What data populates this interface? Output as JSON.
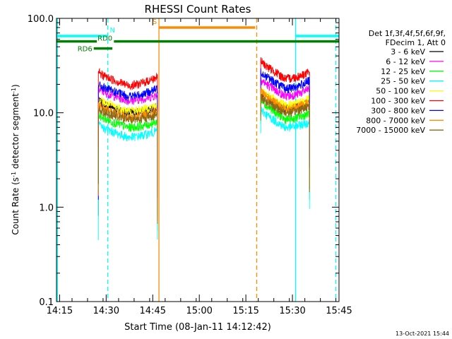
{
  "chart_data": {
    "type": "line",
    "title": "RHESSI Count Rates",
    "xlabel": "Start Time (08-Jan-11 14:12:42)",
    "ylabel_main": "Count Rate (s",
    "ylabel_sup1": "-1",
    "ylabel_mid": " detector segment",
    "ylabel_sup2": "-1",
    "ylabel_end": ")",
    "timestamp": "13-Oct-2021 15:44",
    "y_scale": "log",
    "ylim": [
      0.1,
      100
    ],
    "xlim_minutes": [
      14.0,
      105.0
    ],
    "y_ticks": [
      {
        "value": 0.1,
        "label": "0.1"
      },
      {
        "value": 1,
        "label": "1.0"
      },
      {
        "value": 10,
        "label": "10.0"
      },
      {
        "value": 100,
        "label": "100.0"
      }
    ],
    "x_ticks": [
      {
        "minute": 15,
        "label": "14:15"
      },
      {
        "minute": 30,
        "label": "14:30"
      },
      {
        "minute": 45,
        "label": "14:45"
      },
      {
        "minute": 60,
        "label": "15:00"
      },
      {
        "minute": 75,
        "label": "15:15"
      },
      {
        "minute": 90,
        "label": "15:30"
      },
      {
        "minute": 105,
        "label": "15:45"
      }
    ],
    "legend_header": [
      "Det 1f,3f,4f,5f,6f,9f,",
      "FDecim 1, Att 0"
    ],
    "series": [
      {
        "name": "3 - 6 keV",
        "color": "#000000",
        "seg1": [
          13.5,
          10.0,
          11.5
        ],
        "seg2": [
          17,
          11,
          13
        ]
      },
      {
        "name": "6 - 12 keV",
        "color": "#ff00ff",
        "seg1": [
          18,
          13.5,
          15.5
        ],
        "seg2": [
          23,
          15,
          18
        ]
      },
      {
        "name": "12 - 25 keV",
        "color": "#00ff00",
        "seg1": [
          9.5,
          7.0,
          8.0
        ],
        "seg2": [
          14,
          8.5,
          10
        ]
      },
      {
        "name": "25 - 50 keV",
        "color": "#00ffff",
        "seg1": [
          7.5,
          5.5,
          6.5
        ],
        "seg2": [
          11,
          7,
          8
        ]
      },
      {
        "name": "50 - 100 keV",
        "color": "#ffff00",
        "seg1": [
          14,
          10.5,
          12
        ],
        "seg2": [
          18,
          12,
          14
        ]
      },
      {
        "name": "100 - 300 keV",
        "color": "#ff0000",
        "seg1": [
          27,
          19.5,
          24
        ],
        "seg2": [
          36,
          23,
          27
        ]
      },
      {
        "name": "300 - 800 keV",
        "color": "#0000ff",
        "seg1": [
          20,
          15,
          18
        ],
        "seg2": [
          28,
          18,
          22
        ]
      },
      {
        "name": "800 - 7000 keV",
        "color": "#ff8c00",
        "seg1": [
          12,
          9,
          10.5
        ],
        "seg2": [
          17,
          11,
          13
        ]
      },
      {
        "name": "7000 - 15000 keV",
        "color": "#8b6914",
        "seg1": [
          11,
          8.5,
          9.5
        ],
        "seg2": [
          15,
          10,
          12
        ]
      }
    ],
    "segment_times": {
      "seg1": [
        27.5,
        46.5
      ],
      "seg2": [
        79.8,
        95.5
      ]
    },
    "flags": [
      {
        "label": "N",
        "color": "#00ffff",
        "y": 65,
        "spans": [
          [
            14,
            30.5
          ],
          [
            91,
            105
          ]
        ]
      },
      {
        "label": "S",
        "color": "#ff8c00",
        "y": 80,
        "spans": [
          [
            47,
            78
          ]
        ]
      },
      {
        "label": "RD0",
        "color": "#008000",
        "y": 57,
        "spans": [
          [
            14,
            27
          ],
          [
            32.5,
            105
          ]
        ]
      },
      {
        "label": "RD6",
        "color": "#008000",
        "y": 48,
        "spans": [
          [
            26,
            32
          ]
        ]
      }
    ],
    "vlines": [
      {
        "minute": 14.3,
        "color": "#00ffff",
        "style": "solid"
      },
      {
        "minute": 30.5,
        "color": "#00ffff",
        "style": "dashed"
      },
      {
        "minute": 47.0,
        "color": "#ff8c00",
        "style": "solid"
      },
      {
        "minute": 78.5,
        "color": "#ff8c00",
        "style": "dashed"
      },
      {
        "minute": 91.0,
        "color": "#00ffff",
        "style": "solid"
      },
      {
        "minute": 104.0,
        "color": "#00ffff",
        "style": "dashed"
      }
    ]
  }
}
